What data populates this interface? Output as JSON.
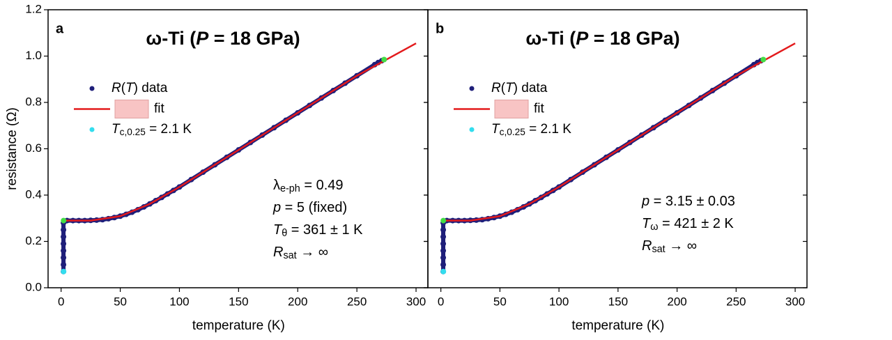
{
  "chart_data": [
    {
      "type": "scatter",
      "panel_label": "a",
      "title": [
        {
          "text": "ω-Ti ("
        },
        {
          "text": "P",
          "style": "italic"
        },
        {
          "text": " = 18 GPa)"
        }
      ],
      "x_label": "temperature (K)",
      "y_label": "resistance (Ω)",
      "xlim": [
        -11,
        310
      ],
      "ylim": [
        0,
        1.2
      ],
      "xticks": [
        0,
        50,
        100,
        150,
        200,
        250,
        300
      ],
      "yticks": [
        {
          "value": 0,
          "label": "0.0"
        },
        {
          "value": 0.2,
          "label": "0.2"
        },
        {
          "value": 0.4,
          "label": "0.4"
        },
        {
          "value": 0.6,
          "label": "0.6"
        },
        {
          "value": 0.8,
          "label": "0.8"
        },
        {
          "value": 1,
          "label": "1.0"
        },
        {
          "value": 1.2,
          "label": "1.2"
        }
      ],
      "show_ytick_labels": true,
      "series": [
        {
          "name": [
            {
              "text": "R",
              "style": "italic"
            },
            {
              "text": "("
            },
            {
              "text": "T",
              "style": "italic"
            },
            {
              "text": ") data"
            }
          ],
          "color": "#1f1f7a",
          "marker": "dot",
          "x": [
            2,
            2,
            2,
            2,
            2,
            2,
            2,
            2,
            5,
            10,
            15,
            20,
            25,
            30,
            35,
            40,
            45,
            50,
            55,
            60,
            65,
            70,
            75,
            80,
            85,
            90,
            95,
            100,
            110,
            120,
            130,
            140,
            150,
            160,
            170,
            180,
            190,
            200,
            210,
            220,
            230,
            240,
            250,
            265,
            268,
            271
          ],
          "values": [
            0.07,
            0.1,
            0.13,
            0.16,
            0.19,
            0.22,
            0.25,
            0.28,
            0.29,
            0.29,
            0.29,
            0.29,
            0.291,
            0.292,
            0.294,
            0.298,
            0.303,
            0.309,
            0.317,
            0.326,
            0.337,
            0.349,
            0.362,
            0.376,
            0.39,
            0.405,
            0.42,
            0.435,
            0.467,
            0.499,
            0.531,
            0.563,
            0.595,
            0.627,
            0.659,
            0.691,
            0.723,
            0.755,
            0.787,
            0.819,
            0.851,
            0.883,
            0.915,
            0.963,
            0.972,
            0.98
          ]
        },
        {
          "name": [
            {
              "text": "fit"
            }
          ],
          "color": "#e31a1c",
          "marker": "line",
          "x": [
            2,
            25,
            50,
            75,
            100,
            150,
            200,
            250,
            300
          ],
          "values": [
            0.29,
            0.29,
            0.309,
            0.362,
            0.435,
            0.595,
            0.755,
            0.915,
            1.055
          ]
        },
        {
          "name": [
            {
              "text": "T",
              "style": "italic"
            },
            {
              "text": "c,0.25",
              "style": "sub"
            },
            {
              "text": " = 2.1 K"
            }
          ],
          "color": "#33ddee",
          "marker": "dot",
          "x": [
            2.1
          ],
          "values": [
            0.07
          ]
        },
        {
          "color": "#44dd44",
          "marker": "dot",
          "x": [
            2.1,
            273
          ],
          "values": [
            0.29,
            0.985
          ]
        }
      ],
      "annotation": [
        [
          {
            "text": "λ"
          },
          {
            "text": "e-ph",
            "style": "sub"
          },
          {
            "text": " = 0.49"
          }
        ],
        [
          {
            "text": "p",
            "style": "italic"
          },
          {
            "text": " = 5 (fixed)"
          }
        ],
        [
          {
            "text": "T",
            "style": "italic"
          },
          {
            "text": "θ",
            "style": "sub"
          },
          {
            "text": " = 361 ± 1 K"
          }
        ],
        [
          {
            "text": "R",
            "style": "italic"
          },
          {
            "text": "sat",
            "style": "sub"
          },
          {
            "text": " → ∞"
          }
        ]
      ]
    },
    {
      "type": "scatter",
      "panel_label": "b",
      "title": [
        {
          "text": "ω-Ti ("
        },
        {
          "text": "P",
          "style": "italic"
        },
        {
          "text": " = 18 GPa)"
        }
      ],
      "x_label": "temperature (K)",
      "xlim": [
        -11,
        310
      ],
      "ylim": [
        0,
        1.2
      ],
      "xticks": [
        0,
        50,
        100,
        150,
        200,
        250,
        300
      ],
      "yticks": [
        0,
        0.2,
        0.4,
        0.6,
        0.8,
        1,
        1.2
      ],
      "show_ytick_labels": false,
      "series": [
        {
          "name": [
            {
              "text": "R",
              "style": "italic"
            },
            {
              "text": "("
            },
            {
              "text": "T",
              "style": "italic"
            },
            {
              "text": ") data"
            }
          ],
          "color": "#1f1f7a",
          "marker": "dot",
          "x": [
            2,
            2,
            2,
            2,
            2,
            2,
            2,
            2,
            5,
            10,
            15,
            20,
            25,
            30,
            35,
            40,
            45,
            50,
            55,
            60,
            65,
            70,
            75,
            80,
            85,
            90,
            95,
            100,
            110,
            120,
            130,
            140,
            150,
            160,
            170,
            180,
            190,
            200,
            210,
            220,
            230,
            240,
            250,
            265,
            268,
            271
          ],
          "values": [
            0.07,
            0.1,
            0.13,
            0.16,
            0.19,
            0.22,
            0.25,
            0.28,
            0.29,
            0.29,
            0.29,
            0.29,
            0.291,
            0.292,
            0.294,
            0.298,
            0.303,
            0.309,
            0.317,
            0.326,
            0.337,
            0.349,
            0.362,
            0.376,
            0.39,
            0.405,
            0.42,
            0.435,
            0.467,
            0.499,
            0.531,
            0.563,
            0.595,
            0.627,
            0.659,
            0.691,
            0.723,
            0.755,
            0.787,
            0.819,
            0.851,
            0.883,
            0.915,
            0.963,
            0.972,
            0.98
          ]
        },
        {
          "name": [
            {
              "text": "fit"
            }
          ],
          "color": "#e31a1c",
          "marker": "line",
          "x": [
            2,
            25,
            50,
            75,
            100,
            150,
            200,
            250,
            300
          ],
          "values": [
            0.29,
            0.29,
            0.309,
            0.362,
            0.435,
            0.595,
            0.755,
            0.915,
            1.055
          ]
        },
        {
          "name": [
            {
              "text": "T",
              "style": "italic"
            },
            {
              "text": "c,0.25",
              "style": "sub"
            },
            {
              "text": " = 2.1 K"
            }
          ],
          "color": "#33ddee",
          "marker": "dot",
          "x": [
            2.1
          ],
          "values": [
            0.07
          ]
        },
        {
          "color": "#44dd44",
          "marker": "dot",
          "x": [
            2.1,
            273
          ],
          "values": [
            0.29,
            0.985
          ]
        }
      ],
      "annotation": [
        [
          {
            "text": "p",
            "style": "italic"
          },
          {
            "text": " = 3.15  ± 0.03"
          }
        ],
        [
          {
            "text": "T",
            "style": "italic"
          },
          {
            "text": "ω",
            "style": "sub"
          },
          {
            "text": " = 421 ± 2 K"
          }
        ],
        [
          {
            "text": "R",
            "style": "italic"
          },
          {
            "text": "sat",
            "style": "sub"
          },
          {
            "text": " → ∞"
          }
        ]
      ]
    }
  ]
}
